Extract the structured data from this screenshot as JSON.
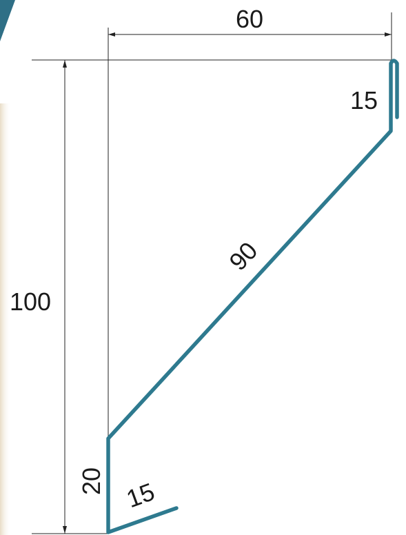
{
  "colors": {
    "profile": "#2e7a8f",
    "dimension_lines": "#222222",
    "corner_shape": "#2f6f86",
    "left_strip": "#e8dcc6"
  },
  "dimensions": {
    "top_width": "60",
    "top_hem": "15",
    "diagonal": "90",
    "total_height": "100",
    "bottom_vertical": "20",
    "bottom_flange": "15"
  }
}
